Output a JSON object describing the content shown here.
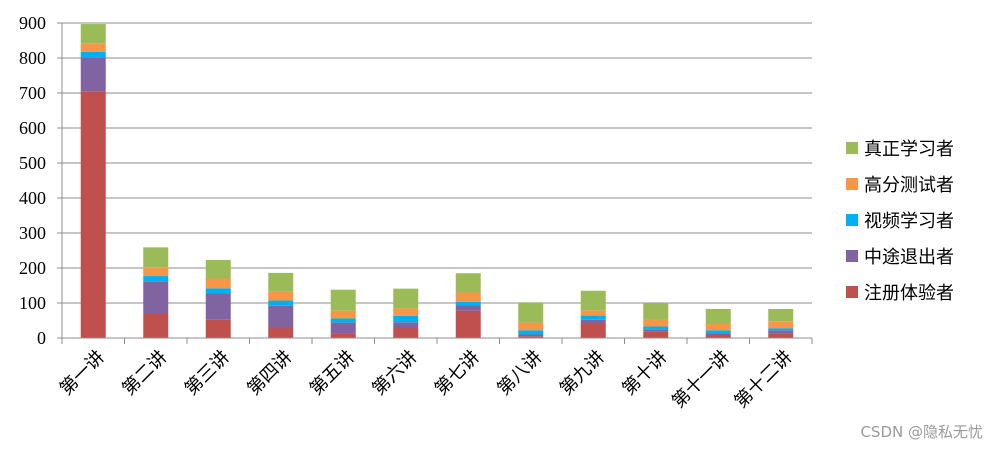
{
  "chart_data": {
    "type": "bar",
    "stacked": true,
    "categories": [
      "第一讲",
      "第二讲",
      "第三讲",
      "第四讲",
      "第五讲",
      "第六讲",
      "第七讲",
      "第八讲",
      "第九讲",
      "第十讲",
      "第十一讲",
      "第十二讲"
    ],
    "series": [
      {
        "name": "注册体验者",
        "color": "#C0504D",
        "values": [
          705,
          70,
          52,
          30,
          14,
          30,
          78,
          5,
          40,
          18,
          10,
          14
        ]
      },
      {
        "name": "中途退出者",
        "color": "#8064A2",
        "values": [
          95,
          92,
          75,
          62,
          30,
          15,
          15,
          5,
          12,
          5,
          4,
          8
        ]
      },
      {
        "name": "视频学习者",
        "color": "#00B0F0",
        "values": [
          18,
          15,
          15,
          15,
          12,
          18,
          10,
          12,
          12,
          10,
          8,
          6
        ]
      },
      {
        "name": "高分测试者",
        "color": "#F79646",
        "values": [
          24,
          25,
          28,
          25,
          22,
          22,
          27,
          22,
          15,
          20,
          18,
          20
        ]
      },
      {
        "name": "真正学习者",
        "color": "#9BBB59",
        "values": [
          55,
          57,
          53,
          54,
          60,
          56,
          55,
          58,
          56,
          47,
          43,
          35
        ]
      }
    ],
    "y_ticks": [
      "0",
      "100",
      "200",
      "300",
      "400",
      "500",
      "600",
      "700",
      "800",
      "900"
    ],
    "ylim": [
      0,
      900
    ],
    "gridlines": true,
    "legend_position": "right",
    "legend_order": [
      "真正学习者",
      "高分测试者",
      "视频学习者",
      "中途退出者",
      "注册体验者"
    ]
  },
  "watermark": "CSDN @隐私无忧"
}
